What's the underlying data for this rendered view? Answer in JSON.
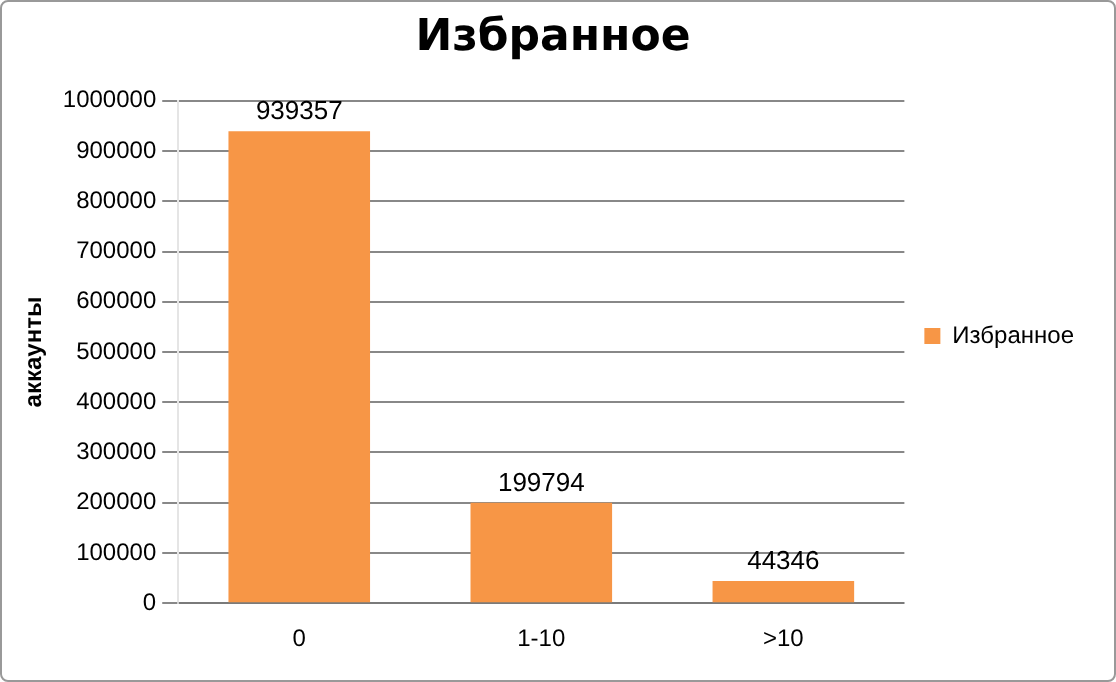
{
  "chart_data": {
    "type": "bar",
    "title": "Избранное",
    "ylabel": "аккаунты",
    "categories": [
      "0",
      "1-10",
      ">10"
    ],
    "series": [
      {
        "name": "Избранное",
        "color": "#f79646",
        "values": [
          939357,
          199794,
          44346
        ]
      }
    ],
    "ylim": [
      0,
      1000000
    ],
    "yticks": [
      0,
      100000,
      200000,
      300000,
      400000,
      500000,
      600000,
      700000,
      800000,
      900000,
      1000000
    ],
    "grid": "y",
    "legend": "right",
    "data_labels": true
  }
}
